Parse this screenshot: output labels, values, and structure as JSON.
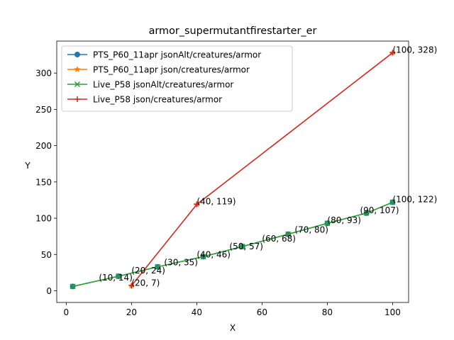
{
  "chart_data": {
    "type": "line",
    "title": "armor_supermutantfirestarter_er",
    "xlabel": "X",
    "ylabel": "Y",
    "xlim": [
      -2.9,
      104.9
    ],
    "ylim": [
      -16.1,
      344.1
    ],
    "xticks": [
      0,
      20,
      40,
      60,
      80,
      100
    ],
    "yticks": [
      0,
      50,
      100,
      150,
      200,
      250,
      300
    ],
    "grid": false,
    "legend_position": "upper-left",
    "series": [
      {
        "name": "PTS_P60_11apr jsonAlt/creatures/armor",
        "color": "#1f77b4",
        "marker": "circle",
        "x": [
          2,
          16,
          28,
          42,
          54,
          68,
          80,
          92,
          100
        ],
        "y": [
          6,
          20,
          33,
          47,
          61,
          78,
          93,
          107,
          122
        ]
      },
      {
        "name": "PTS_P60_11apr json/creatures/armor",
        "color": "#ff7f0e",
        "marker": "star",
        "x": [
          20,
          40,
          100
        ],
        "y": [
          7,
          119,
          328
        ]
      },
      {
        "name": "Live_P58 jsonAlt/creatures/armor",
        "color": "#2ca02c",
        "marker": "x",
        "x": [
          2,
          16,
          28,
          42,
          54,
          68,
          80,
          92,
          100
        ],
        "y": [
          6,
          20,
          33,
          47,
          61,
          78,
          93,
          107,
          122
        ]
      },
      {
        "name": "Live_P58 json/creatures/armor",
        "color": "#d62728",
        "marker": "plus",
        "x": [
          20,
          40,
          100
        ],
        "y": [
          7,
          119,
          328
        ]
      }
    ],
    "annotations": [
      {
        "text": "(10, 14)",
        "x": 10,
        "y": 14
      },
      {
        "text": "(20, 24)",
        "x": 20,
        "y": 24
      },
      {
        "text": "(20, 7)",
        "x": 20,
        "y": 7
      },
      {
        "text": "(30, 35)",
        "x": 30,
        "y": 35
      },
      {
        "text": "(40, 46)",
        "x": 40,
        "y": 46
      },
      {
        "text": "(40, 119)",
        "x": 40,
        "y": 119
      },
      {
        "text": "(50, 57)",
        "x": 50,
        "y": 57
      },
      {
        "text": "(60, 68)",
        "x": 60,
        "y": 68
      },
      {
        "text": "(70, 80)",
        "x": 70,
        "y": 80
      },
      {
        "text": "(80, 93)",
        "x": 80,
        "y": 93
      },
      {
        "text": "(90, 107)",
        "x": 90,
        "y": 107
      },
      {
        "text": "(100, 122)",
        "x": 100,
        "y": 122
      },
      {
        "text": "(100, 328)",
        "x": 100,
        "y": 328
      }
    ]
  }
}
